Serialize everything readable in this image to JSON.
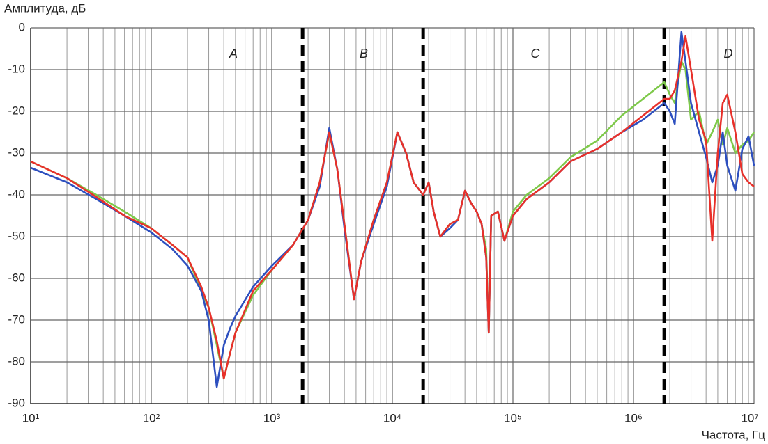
{
  "chart_data": {
    "type": "line",
    "y_label": "Амплитуда, дБ",
    "x_label": "Частота, Гц",
    "x_log": true,
    "grid": true,
    "xlim": [
      10,
      10000000
    ],
    "xticks": [
      {
        "value": 10,
        "label": "10¹"
      },
      {
        "value": 100,
        "label": "10²"
      },
      {
        "value": 1000,
        "label": "10³"
      },
      {
        "value": 10000,
        "label": "10⁴"
      },
      {
        "value": 100000,
        "label": "10⁵"
      },
      {
        "value": 1000000,
        "label": "10⁶"
      },
      {
        "value": 10000000,
        "label": "10⁷"
      }
    ],
    "xminorticks": [
      20,
      30,
      40,
      50,
      60,
      70,
      80,
      90,
      200,
      300,
      400,
      500,
      600,
      700,
      800,
      900,
      2000,
      3000,
      4000,
      5000,
      6000,
      7000,
      8000,
      9000,
      20000,
      30000,
      40000,
      50000,
      60000,
      70000,
      80000,
      90000,
      200000,
      300000,
      400000,
      500000,
      600000,
      700000,
      800000,
      900000,
      2000000,
      3000000,
      4000000,
      5000000,
      6000000,
      7000000,
      8000000,
      9000000
    ],
    "ylim": [
      -90,
      0
    ],
    "yticks": [
      -90,
      -80,
      -70,
      -60,
      -50,
      -40,
      -30,
      -20,
      -10,
      0
    ],
    "regions": {
      "boundaries": [
        1800,
        18000,
        1800000
      ],
      "labels": [
        "A",
        "B",
        "C",
        "D"
      ]
    },
    "x": [
      10,
      20,
      35,
      60,
      100,
      150,
      200,
      260,
      300,
      350,
      400,
      450,
      500,
      700,
      1000,
      1500,
      2000,
      2500,
      3000,
      3500,
      4000,
      4800,
      5500,
      7000,
      9000,
      11000,
      13000,
      15000,
      18000,
      20000,
      22000,
      25000,
      30000,
      35000,
      40000,
      45000,
      50000,
      55000,
      60000,
      63000,
      66000,
      75000,
      85000,
      100000,
      130000,
      200000,
      300000,
      500000,
      800000,
      1200000,
      1800000,
      2000000,
      2200000,
      2500000,
      2700000,
      3000000,
      3500000,
      4000000,
      4500000,
      5000000,
      5500000,
      6000000,
      7000000,
      8000000,
      9000000,
      10000000
    ],
    "series": [
      {
        "color": "#7ec94a",
        "values": [
          -32,
          -36,
          -40,
          -44,
          -48,
          -52,
          -55,
          -63,
          -67,
          -76,
          -84,
          -78,
          -73,
          -64,
          -58,
          -52,
          -46,
          -37,
          -25,
          -34,
          -47,
          -65,
          -56,
          -46,
          -37,
          -25,
          -30,
          -37,
          -40,
          -37,
          -44,
          -50,
          -47,
          -46,
          -39,
          -42,
          -44,
          -47,
          -53,
          -73,
          -45,
          -44,
          -51,
          -44,
          -40,
          -36,
          -31,
          -27,
          -21,
          -17,
          -13,
          -16,
          -18,
          -8,
          -10,
          -22,
          -20,
          -28,
          -25,
          -22,
          -28,
          -24,
          -30,
          -28,
          -27,
          -25
        ]
      },
      {
        "color": "#2d4fbf",
        "values": [
          -33.5,
          -37,
          -41,
          -45,
          -49,
          -53,
          -57,
          -63,
          -70,
          -86,
          -76,
          -72,
          -69,
          -62,
          -57,
          -52,
          -46,
          -38,
          -24,
          -34,
          -48,
          -65,
          -56,
          -47,
          -38,
          -25,
          -30,
          -37,
          -40,
          -37,
          -44,
          -50,
          -48,
          -46,
          -39,
          -42,
          -44,
          -47,
          -55,
          -73,
          -45,
          -44,
          -51,
          -45,
          -41,
          -37,
          -32,
          -29,
          -25,
          -22,
          -18,
          -20,
          -23,
          -1,
          -8,
          -18,
          -25,
          -31,
          -37,
          -33,
          -25,
          -33,
          -39,
          -29,
          -26,
          -33
        ]
      },
      {
        "color": "#e8302a",
        "values": [
          -32,
          -36,
          -40.5,
          -45,
          -48,
          -52,
          -55,
          -62,
          -67,
          -75,
          -84,
          -78,
          -73,
          -63,
          -58,
          -52,
          -46,
          -37,
          -25,
          -34,
          -47,
          -65,
          -56,
          -46,
          -37,
          -25,
          -30,
          -37,
          -40,
          -37,
          -44,
          -50,
          -47,
          -46,
          -39,
          -42,
          -44,
          -47,
          -55,
          -73,
          -45,
          -44,
          -51,
          -45,
          -41,
          -37,
          -32,
          -29,
          -25,
          -21,
          -17,
          -17,
          -15,
          -8,
          -2,
          -10,
          -22,
          -27,
          -51,
          -30,
          -18,
          -16,
          -25,
          -35,
          -37,
          -38
        ]
      }
    ]
  }
}
